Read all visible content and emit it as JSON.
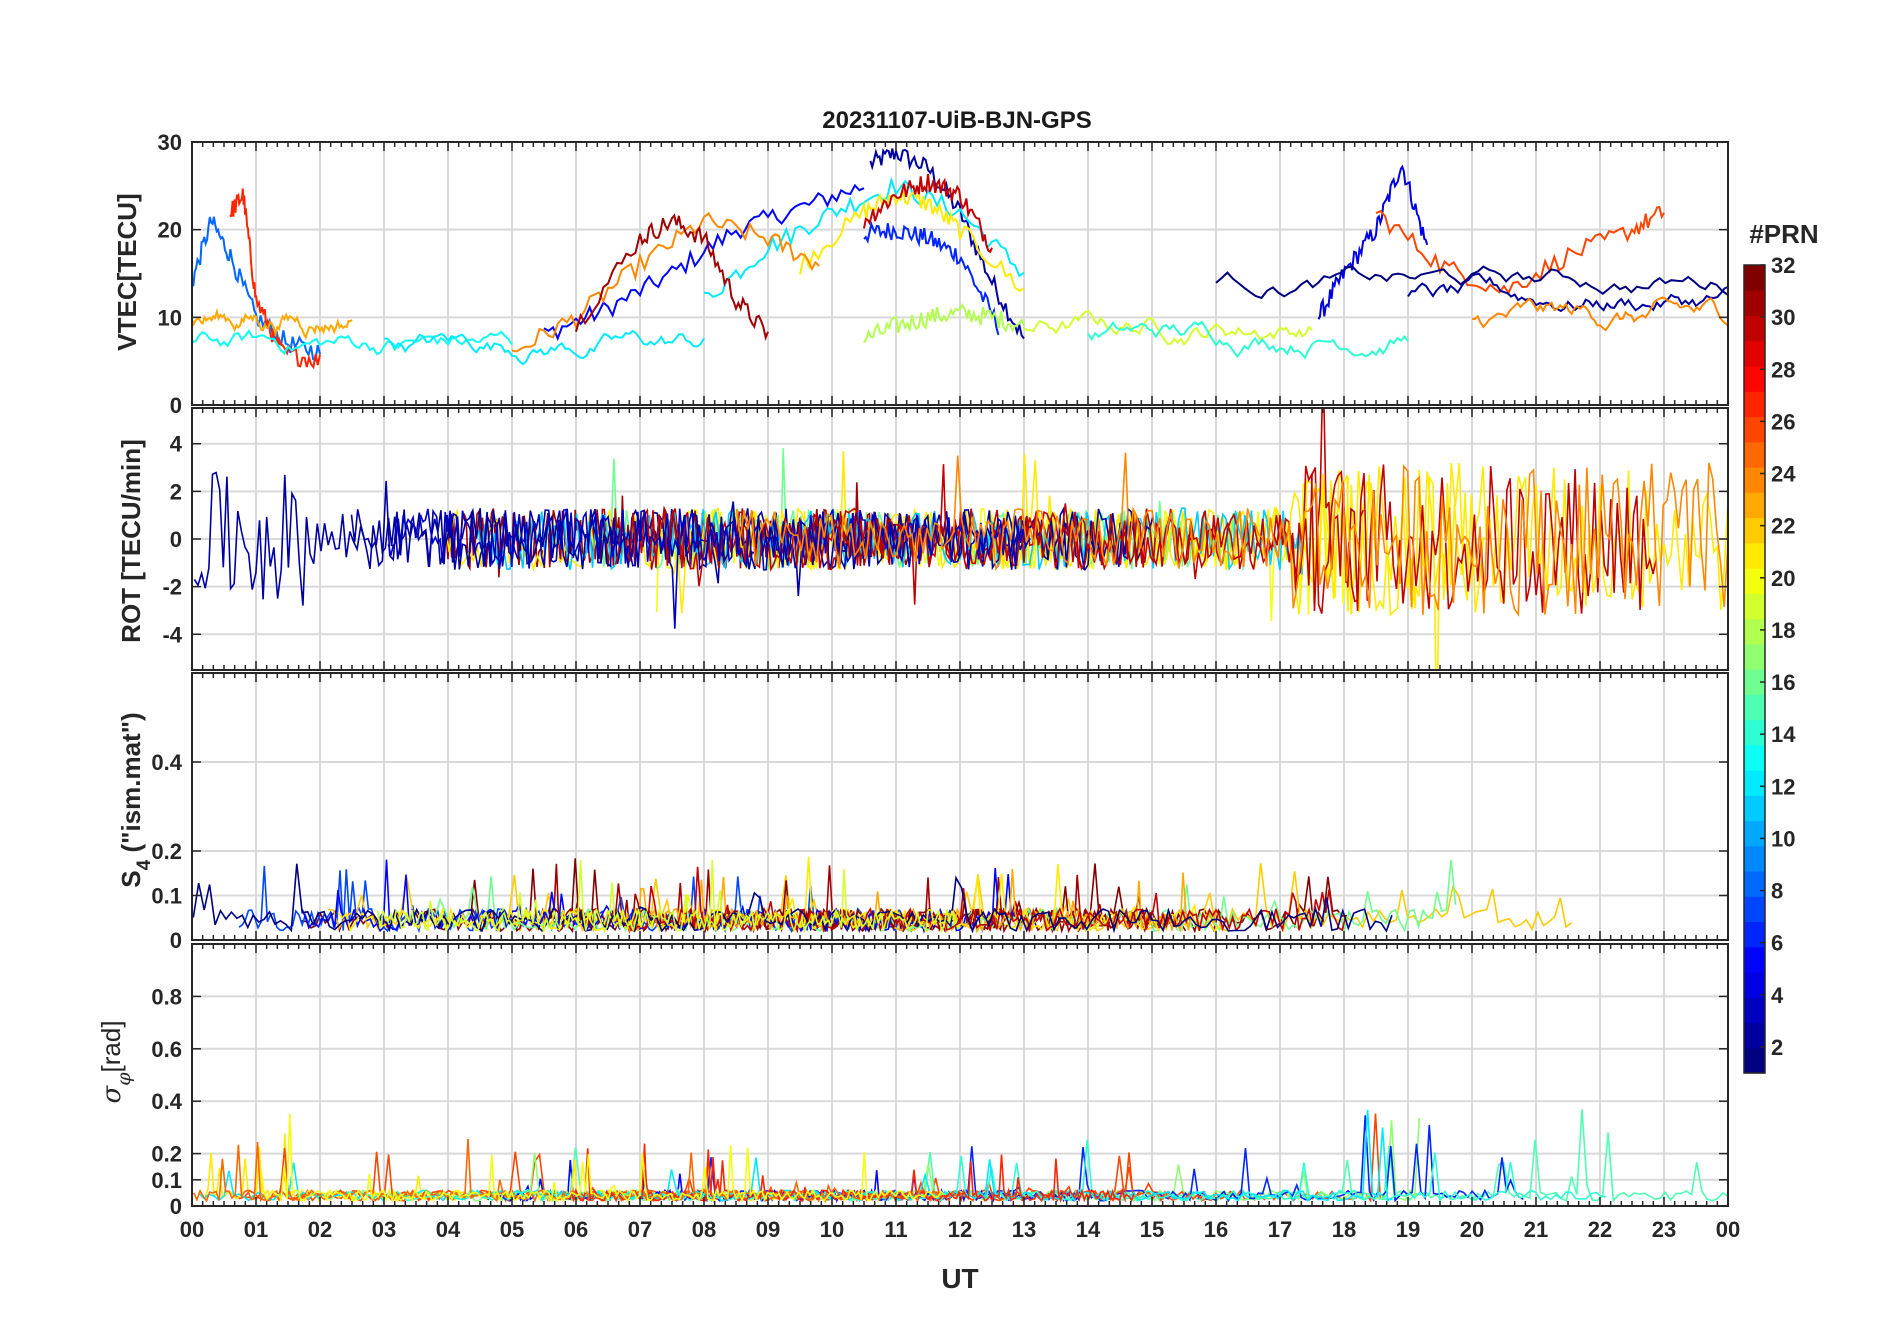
{
  "chart_data": [
    {
      "type": "line",
      "panel": "vtec",
      "title": "20231107-UiB-BJN-GPS",
      "ylabel": "VTEC[TECU]",
      "ylim": [
        0,
        30
      ],
      "yticks": [
        0,
        10,
        20,
        30
      ],
      "ytick_labels": [
        "0",
        "10",
        "20",
        "30"
      ],
      "grid": true,
      "series": [
        {
          "name": "PRN 2",
          "prn": 2,
          "t": [
            10.6,
            11.0,
            11.5,
            12.0,
            12.5,
            13.0
          ],
          "v": [
            27.5,
            28.8,
            27.0,
            22.0,
            14.0,
            7.5
          ]
        },
        {
          "name": "PRN 5",
          "prn": 5,
          "t": [
            5.5,
            6.5,
            7.5,
            8.5,
            9.5,
            10.5
          ],
          "v": [
            8.0,
            11.0,
            15.0,
            20.0,
            22.5,
            25.0
          ]
        },
        {
          "name": "PRN 6",
          "prn": 6,
          "t": [
            10.5,
            11.0,
            11.5,
            12.0,
            12.6
          ],
          "v": [
            19.5,
            20.0,
            19.0,
            17.0,
            9.0
          ]
        },
        {
          "name": "PRN 4",
          "prn": 4,
          "t": [
            17.6,
            18.0,
            18.5,
            18.9,
            19.3
          ],
          "v": [
            10.0,
            15.0,
            20.0,
            27.5,
            18.0
          ]
        },
        {
          "name": "PRN 8",
          "prn": 8,
          "t": [
            0.0,
            0.3,
            0.6,
            1.0,
            1.5,
            2.0
          ],
          "v": [
            14.0,
            21.0,
            17.0,
            10.0,
            7.0,
            6.0
          ]
        },
        {
          "name": "PRN 12",
          "prn": 12,
          "t": [
            8.0,
            9.0,
            10.0,
            11.0,
            12.0,
            13.0
          ],
          "v": [
            12.0,
            18.0,
            22.0,
            25.0,
            22.0,
            15.0
          ]
        },
        {
          "name": "PRN 18",
          "prn": 18,
          "t": [
            10.5,
            11.0,
            11.5,
            12.0,
            12.5,
            13.0
          ],
          "v": [
            7.5,
            9.0,
            10.0,
            10.5,
            10.0,
            9.0
          ]
        },
        {
          "name": "PRN 21",
          "prn": 21,
          "t": [
            9.5,
            10.5,
            11.0,
            11.5,
            12.0,
            13.0
          ],
          "v": [
            16.0,
            22.0,
            24.0,
            23.0,
            20.0,
            13.0
          ]
        },
        {
          "name": "PRN 24",
          "prn": 24,
          "t": [
            5.0,
            6.0,
            7.0,
            8.0,
            9.0,
            9.8
          ],
          "v": [
            6.0,
            10.0,
            16.0,
            21.0,
            19.0,
            16.0
          ]
        },
        {
          "name": "PRN 27",
          "prn": 27,
          "t": [
            0.6,
            0.8,
            1.0,
            1.4,
            2.0
          ],
          "v": [
            22.0,
            24.0,
            12.0,
            6.0,
            5.0
          ]
        },
        {
          "name": "PRN 30",
          "prn": 30,
          "t": [
            10.5,
            11.0,
            11.5,
            12.0,
            12.5
          ],
          "v": [
            21.0,
            24.0,
            25.5,
            24.0,
            18.0
          ]
        },
        {
          "name": "PRN 31",
          "prn": 31,
          "t": [
            6.0,
            7.0,
            7.5,
            8.0,
            8.5,
            9.0
          ],
          "v": [
            9.0,
            19.0,
            21.0,
            19.0,
            12.0,
            8.0
          ]
        },
        {
          "name": "PRN 26",
          "prn": 26,
          "t": [
            18.5,
            19.5,
            20.5,
            21.5,
            22.5,
            23.0
          ],
          "v": [
            22.0,
            16.0,
            13.0,
            17.0,
            20.0,
            22.0
          ]
        }
      ]
    },
    {
      "type": "line",
      "panel": "rot",
      "ylabel": "ROT [TECU/min]",
      "ylim": [
        -5.5,
        5.5
      ],
      "yticks": [
        -4,
        -2,
        0,
        2,
        4
      ],
      "ytick_labels": [
        "-4",
        "-2",
        "0",
        "2",
        "4"
      ],
      "grid": true
    },
    {
      "type": "line",
      "panel": "s4",
      "ylabel": "S4 (\"ism.mat\")",
      "ylabel_main": "S",
      "ylabel_sub": "4",
      "ylabel_rest": " (\"ism.mat\")",
      "ylim": [
        0,
        0.6
      ],
      "yticks": [
        0,
        0.1,
        0.2,
        0.4
      ],
      "ytick_labels": [
        "0",
        "0.1",
        "0.2",
        "0.4"
      ],
      "grid": true
    },
    {
      "type": "line",
      "panel": "sigma",
      "ylabel": "σφ[rad]",
      "ylabel_main": "σ",
      "ylabel_sub": "φ",
      "ylabel_rest": "[rad]",
      "ylim": [
        0,
        1.0
      ],
      "yticks": [
        0,
        0.1,
        0.2,
        0.4,
        0.6,
        0.8
      ],
      "ytick_labels": [
        "0",
        "0.1",
        "0.2",
        "0.4",
        "0.6",
        "0.8"
      ],
      "grid": true
    }
  ],
  "x_axis": {
    "label": "UT",
    "xlim": [
      0,
      24
    ],
    "tick_labels": [
      "00",
      "01",
      "02",
      "03",
      "04",
      "05",
      "06",
      "07",
      "08",
      "09",
      "10",
      "11",
      "12",
      "13",
      "14",
      "15",
      "16",
      "17",
      "18",
      "19",
      "20",
      "21",
      "22",
      "23",
      "00"
    ]
  },
  "colorbar": {
    "label": "#PRN",
    "range": [
      1,
      32
    ],
    "tick_values": [
      2,
      4,
      6,
      8,
      10,
      12,
      14,
      16,
      18,
      20,
      22,
      24,
      26,
      28,
      30,
      32
    ],
    "tick_labels": [
      "2",
      "4",
      "6",
      "8",
      "10",
      "12",
      "14",
      "16",
      "18",
      "20",
      "22",
      "24",
      "26",
      "28",
      "30",
      "32"
    ]
  },
  "colors": {
    "grid": "#d9d9d9",
    "axis": "#262626",
    "background": "#ffffff"
  }
}
